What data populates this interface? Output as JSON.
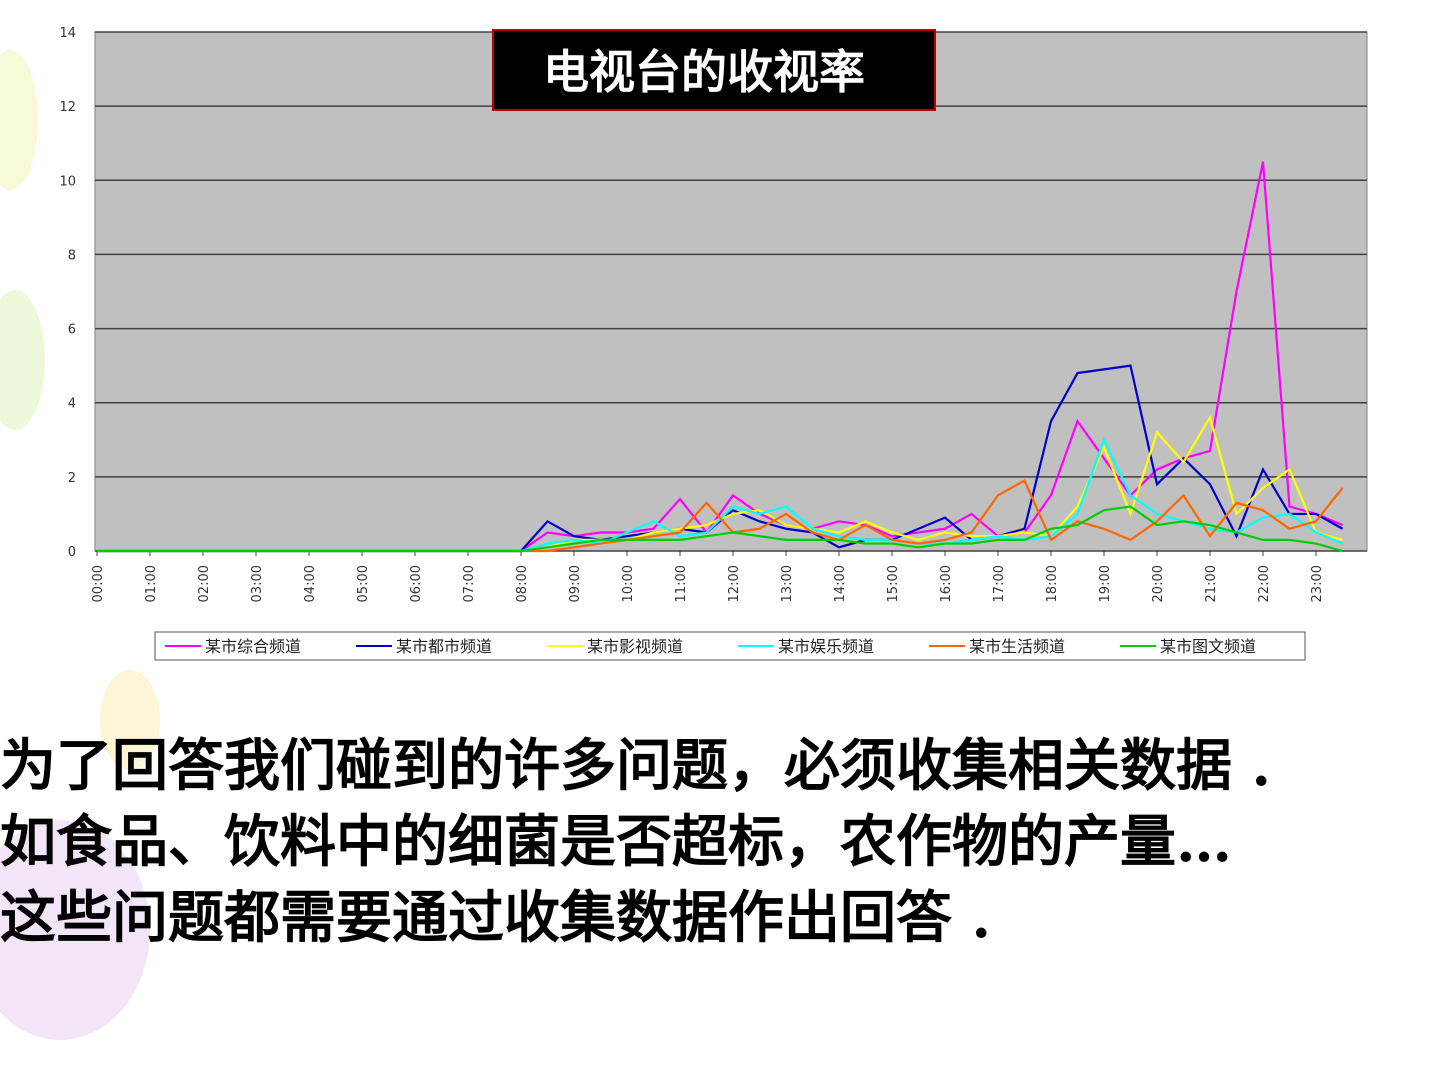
{
  "chart_data": {
    "type": "line",
    "title": "电视台的收视率",
    "categories": [
      "00:00",
      null,
      "01:00",
      null,
      "02:00",
      null,
      "03:00",
      null,
      "04:00",
      null,
      "05:00",
      null,
      "06:00",
      null,
      "07:00",
      null,
      "08:00",
      null,
      "09:00",
      null,
      "10:00",
      null,
      "11:00",
      null,
      "12:00",
      null,
      "13:00",
      null,
      "14:00",
      null,
      "15:00",
      null,
      "16:00",
      null,
      "17:00",
      null,
      "18:00",
      null,
      "19:00",
      null,
      "20:00",
      null,
      "21:00",
      null,
      "22:00",
      null,
      "23:00",
      null
    ],
    "ylim": [
      0,
      14
    ],
    "yticks": [
      0,
      2,
      4,
      6,
      8,
      10,
      12,
      14
    ],
    "grid": true,
    "series": [
      {
        "name": "某市综合频道",
        "color": "#ff00ff",
        "values": [
          0,
          0,
          0,
          0,
          0,
          0,
          0,
          0,
          0,
          0,
          0,
          0,
          0,
          0,
          0,
          0,
          0,
          0.5,
          0.4,
          0.5,
          0.5,
          0.6,
          1.4,
          0.5,
          1.5,
          1.0,
          0.7,
          0.6,
          0.8,
          0.7,
          0.4,
          0.5,
          0.6,
          1.0,
          0.4,
          0.5,
          1.5,
          3.5,
          2.5,
          1.5,
          2.2,
          2.5,
          2.7,
          7.0,
          10.5,
          1.2,
          1.0,
          0.7
        ]
      },
      {
        "name": "某市都市频道",
        "color": "#0000cc",
        "values": [
          0,
          0,
          0,
          0,
          0,
          0,
          0,
          0,
          0,
          0,
          0,
          0,
          0,
          0,
          0,
          0,
          0,
          0.8,
          0.4,
          0.3,
          0.4,
          0.5,
          0.6,
          0.5,
          1.1,
          0.8,
          0.6,
          0.5,
          0.1,
          0.3,
          0.3,
          0.6,
          0.9,
          0.3,
          0.4,
          0.6,
          3.5,
          4.8,
          4.9,
          5.0,
          1.8,
          2.5,
          1.8,
          0.4,
          2.2,
          1.0,
          1.0,
          0.6
        ]
      },
      {
        "name": "某市影视频道",
        "color": "#ffff00",
        "values": [
          0,
          0,
          0,
          0,
          0,
          0,
          0,
          0,
          0,
          0,
          0,
          0,
          0,
          0,
          0,
          0,
          0,
          0.1,
          0.3,
          0.3,
          0.3,
          0.5,
          0.6,
          0.7,
          1.0,
          1.1,
          0.7,
          0.6,
          0.5,
          0.8,
          0.5,
          0.3,
          0.5,
          0.4,
          0.4,
          0.5,
          0.4,
          1.2,
          2.8,
          1.0,
          3.2,
          2.4,
          3.6,
          1.0,
          1.7,
          2.2,
          0.5,
          0.3
        ]
      },
      {
        "name": "某市娱乐频道",
        "color": "#00ffff",
        "values": [
          0,
          0,
          0,
          0,
          0,
          0,
          0,
          0,
          0,
          0,
          0,
          0,
          0,
          0,
          0,
          0,
          0,
          0.2,
          0.3,
          0.2,
          0.5,
          0.8,
          0.4,
          0.5,
          1.2,
          1.0,
          1.2,
          0.6,
          0.4,
          0.3,
          0.3,
          0.2,
          0.2,
          0.3,
          0.4,
          0.3,
          0.4,
          1.0,
          3.0,
          1.5,
          1.0,
          0.8,
          0.6,
          0.5,
          0.9,
          1.0,
          0.5,
          0.2
        ]
      },
      {
        "name": "某市生活频道",
        "color": "#ff6600",
        "values": [
          0,
          0,
          0,
          0,
          0,
          0,
          0,
          0,
          0,
          0,
          0,
          0,
          0,
          0,
          0,
          0,
          0,
          0,
          0.1,
          0.2,
          0.3,
          0.4,
          0.5,
          1.3,
          0.5,
          0.6,
          1.0,
          0.5,
          0.3,
          0.7,
          0.3,
          0.2,
          0.3,
          0.5,
          1.5,
          1.9,
          0.3,
          0.8,
          0.6,
          0.3,
          0.8,
          1.5,
          0.4,
          1.3,
          1.1,
          0.6,
          0.8,
          1.7
        ]
      },
      {
        "name": "某市图文频道",
        "color": "#00cc00",
        "values": [
          0,
          0,
          0,
          0,
          0,
          0,
          0,
          0,
          0,
          0,
          0,
          0,
          0,
          0,
          0,
          0,
          0,
          0.1,
          0.2,
          0.3,
          0.3,
          0.3,
          0.3,
          0.4,
          0.5,
          0.4,
          0.3,
          0.3,
          0.3,
          0.2,
          0.2,
          0.1,
          0.2,
          0.2,
          0.3,
          0.3,
          0.6,
          0.7,
          1.1,
          1.2,
          0.7,
          0.8,
          0.7,
          0.5,
          0.3,
          0.3,
          0.2,
          0
        ]
      }
    ]
  },
  "body": {
    "lines": [
      "为了回答我们碰到的许多问题，必须收集相关数据 .",
      "如食品、饮料中的细菌是否超标，农作物的产量…",
      "这些问题都需要通过收集数据作出回答 ."
    ]
  }
}
